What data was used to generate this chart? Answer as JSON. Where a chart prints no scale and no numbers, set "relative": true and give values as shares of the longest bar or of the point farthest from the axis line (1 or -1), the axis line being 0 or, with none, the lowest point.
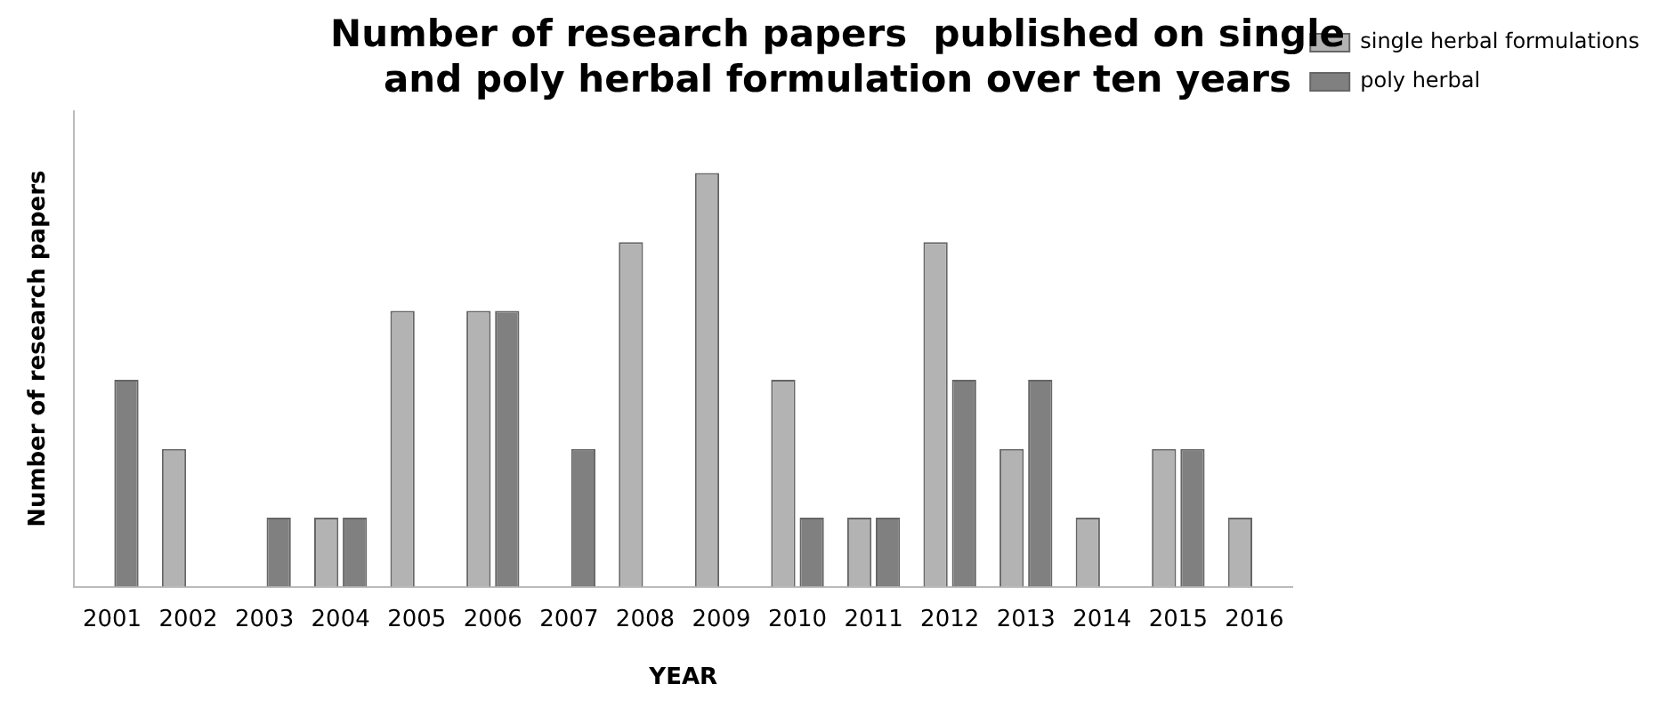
{
  "chart_data": {
    "type": "bar",
    "title": "Number of research papers  published on single and poly herbal formulation over ten years",
    "xlabel": "YEAR",
    "ylabel": "Number of research papers",
    "relative": true,
    "legend": "top right",
    "grid": false,
    "categories": [
      "2001",
      "2002",
      "2003",
      "2004",
      "2005",
      "2006",
      "2007",
      "2008",
      "2009",
      "2010",
      "2011",
      "2012",
      "2013",
      "2014",
      "2015",
      "2016"
    ],
    "series": [
      {
        "name": "single herbal formulations",
        "color": "#b3b3b3",
        "values": [
          0,
          0.333,
          0,
          0.167,
          0.667,
          0.667,
          0,
          0.833,
          1,
          0.5,
          0.167,
          0.833,
          0.333,
          0.167,
          0.333,
          0.167
        ]
      },
      {
        "name": "poly herbal",
        "color": "#808080",
        "values": [
          0.5,
          0,
          0.167,
          0.167,
          0,
          0.667,
          0.333,
          0,
          0,
          0.167,
          0.167,
          0.5,
          0.5,
          0,
          0.333,
          0
        ]
      }
    ]
  }
}
